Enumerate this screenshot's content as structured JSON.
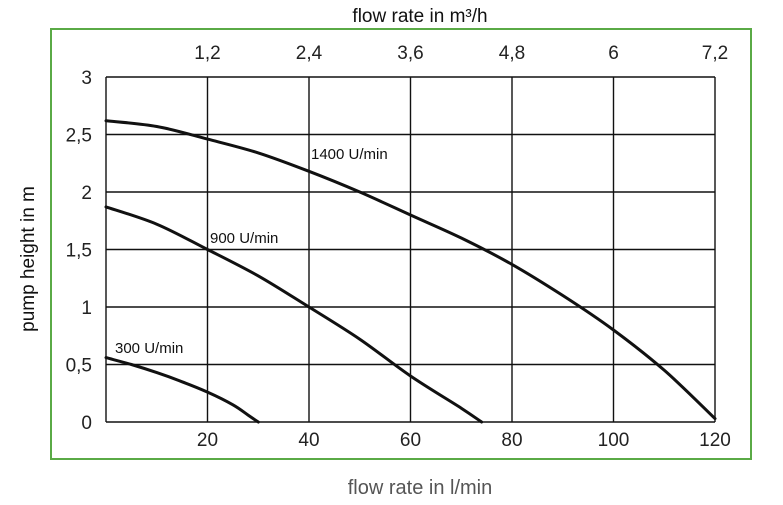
{
  "chart_data": {
    "type": "line",
    "title": "",
    "xlabel": "flow rate in l/min",
    "ylabel": "pump height in m",
    "x2label": "flow rate in m³/h",
    "xlim": [
      0,
      120
    ],
    "ylim": [
      0,
      3
    ],
    "x_ticks": [
      0,
      20,
      40,
      60,
      80,
      100,
      120
    ],
    "x_tick_labels": [
      "",
      "20",
      "40",
      "60",
      "80",
      "100",
      "120"
    ],
    "x2_ticks": [
      20,
      40,
      60,
      80,
      100,
      120
    ],
    "x2_tick_labels": [
      "1,2",
      "2,4",
      "3,6",
      "4,8",
      "6",
      "7,2"
    ],
    "y_ticks": [
      0,
      0.5,
      1,
      1.5,
      2,
      2.5,
      3
    ],
    "y_tick_labels": [
      "0",
      "0,5",
      "1",
      "1,5",
      "2",
      "2,5",
      "3"
    ],
    "grid": true,
    "series": [
      {
        "name": "300 U/min",
        "x": [
          0,
          5,
          10,
          15,
          20,
          25,
          28,
          30
        ],
        "y": [
          0.56,
          0.5,
          0.43,
          0.35,
          0.26,
          0.15,
          0.06,
          0
        ]
      },
      {
        "name": "900 U/min",
        "x": [
          0,
          10,
          20,
          30,
          40,
          50,
          60,
          70,
          74
        ],
        "y": [
          1.87,
          1.72,
          1.5,
          1.27,
          1.0,
          0.72,
          0.4,
          0.12,
          0
        ]
      },
      {
        "name": "1400 U/min",
        "x": [
          0,
          10,
          20,
          30,
          40,
          50,
          60,
          70,
          80,
          90,
          100,
          110,
          120
        ],
        "y": [
          2.62,
          2.57,
          2.46,
          2.34,
          2.18,
          2.0,
          1.8,
          1.6,
          1.37,
          1.1,
          0.8,
          0.45,
          0.03
        ]
      }
    ],
    "colors": {
      "frame": "#5aaa46",
      "grid": "#111111",
      "curve": "#111111"
    }
  }
}
